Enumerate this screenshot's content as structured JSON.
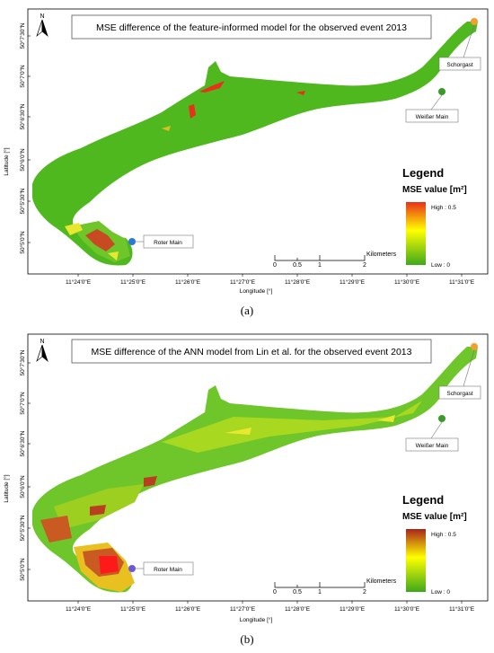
{
  "panels": [
    {
      "title": "MSE difference of the feature-informed model for the observed event 2013",
      "caption": "(a)",
      "north": "N",
      "latitude_label": "Latitude [°]",
      "longitude_label": "Longitude [°]",
      "lat_ticks": [
        "50°7'30\"N",
        "50°7'0\"N",
        "50°6'30\"N",
        "50°6'0\"N",
        "50°5'30\"N",
        "50°5'0\"N"
      ],
      "lon_ticks": [
        "11°24'0\"E",
        "11°25'0\"E",
        "11°26'0\"E",
        "11°27'0\"E",
        "11°28'0\"E",
        "11°29'0\"E",
        "11°30'0\"E",
        "11°31'0\"E"
      ],
      "places": [
        "Schorgast",
        "Weißer Main",
        "Roter Main"
      ],
      "scalebar": {
        "ticks": [
          "0",
          "0.5",
          "1",
          "2"
        ],
        "unit": "Kilometers"
      },
      "legend": {
        "title": "Legend",
        "subtitle": "MSE value [m²]",
        "high": "High : 0.5",
        "low": "Low : 0"
      }
    },
    {
      "title": "MSE difference of the ANN model from Lin et al. for the observed event 2013",
      "caption": "(b)",
      "north": "N",
      "latitude_label": "Latitude [°]",
      "longitude_label": "Longitude [°]",
      "lat_ticks": [
        "50°7'30\"N",
        "50°7'0\"N",
        "50°6'30\"N",
        "50°6'0\"N",
        "50°5'30\"N",
        "50°5'0\"N"
      ],
      "lon_ticks": [
        "11°24'0\"E",
        "11°25'0\"E",
        "11°26'0\"E",
        "11°27'0\"E",
        "11°28'0\"E",
        "11°29'0\"E",
        "11°30'0\"E",
        "11°31'0\"E"
      ],
      "places": [
        "Schorgast",
        "Weißer Main",
        "Roter Main"
      ],
      "scalebar": {
        "ticks": [
          "0",
          "0.5",
          "1",
          "2"
        ],
        "unit": "Kilometers"
      },
      "legend": {
        "title": "Legend",
        "subtitle": "MSE value [m²]",
        "high": "High : 0.5",
        "low": "Low : 0"
      }
    }
  ],
  "colors": {
    "floodplain": "#4fb81f",
    "floodplain_alt": "#6ec62b",
    "low": "#3fa81c",
    "mid": "#ffff00",
    "high": "#e8301a",
    "dark_high": "#a8241a",
    "schorgast_marker": "#f0a030",
    "weisser_main_marker": "#3a9a2a",
    "roter_main_marker": "#2a78d8"
  }
}
